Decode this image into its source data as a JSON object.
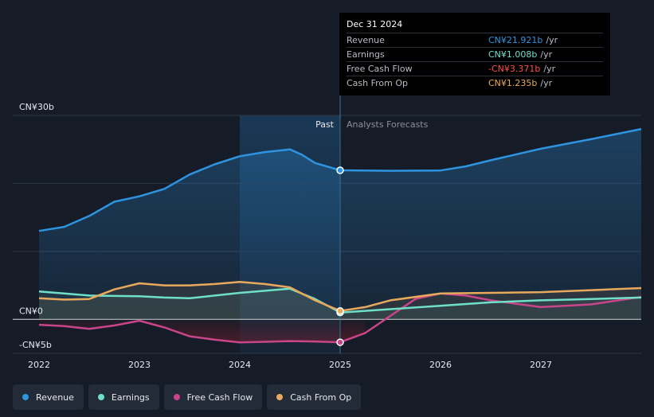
{
  "chart_data": {
    "type": "line",
    "x_ticks": [
      "2022",
      "2023",
      "2024",
      "2025",
      "2026",
      "2027"
    ],
    "xlim": [
      2021.75,
      2028.0
    ],
    "ylim": [
      -5,
      30
    ],
    "y_labels": [
      {
        "value": 30,
        "label": "CN¥30b"
      },
      {
        "value": 0,
        "label": "CN¥0"
      },
      {
        "value": -5,
        "label": "-CN¥5b"
      }
    ],
    "gridlines": [
      30,
      20,
      10,
      0,
      -5
    ],
    "past_label": "Past",
    "forecast_label": "Analysts Forecasts",
    "divider_x": 2025.0,
    "highlight_start": 2024.0,
    "series": [
      {
        "name": "Revenue",
        "color": "#2e94e0",
        "points": [
          [
            2022.0,
            13.0
          ],
          [
            2022.25,
            13.6
          ],
          [
            2022.5,
            15.2
          ],
          [
            2022.75,
            17.3
          ],
          [
            2023.0,
            18.1
          ],
          [
            2023.25,
            19.2
          ],
          [
            2023.5,
            21.3
          ],
          [
            2023.75,
            22.8
          ],
          [
            2024.0,
            24.0
          ],
          [
            2024.25,
            24.6
          ],
          [
            2024.5,
            25.0
          ],
          [
            2024.62,
            24.2
          ],
          [
            2024.75,
            23.0
          ],
          [
            2025.0,
            21.92
          ],
          [
            2025.5,
            21.85
          ],
          [
            2026.0,
            21.9
          ],
          [
            2026.25,
            22.5
          ],
          [
            2026.5,
            23.4
          ],
          [
            2027.0,
            25.1
          ],
          [
            2027.5,
            26.5
          ],
          [
            2028.0,
            28.0
          ]
        ]
      },
      {
        "name": "Earnings",
        "color": "#6fe0c8",
        "points": [
          [
            2022.0,
            4.1
          ],
          [
            2022.25,
            3.8
          ],
          [
            2022.5,
            3.5
          ],
          [
            2023.0,
            3.4
          ],
          [
            2023.25,
            3.2
          ],
          [
            2023.5,
            3.1
          ],
          [
            2023.75,
            3.5
          ],
          [
            2024.0,
            3.9
          ],
          [
            2024.25,
            4.2
          ],
          [
            2024.5,
            4.5
          ],
          [
            2024.75,
            3.0
          ],
          [
            2025.0,
            1.01
          ],
          [
            2025.5,
            1.5
          ],
          [
            2026.0,
            2.0
          ],
          [
            2026.5,
            2.5
          ],
          [
            2027.0,
            2.8
          ],
          [
            2027.5,
            3.0
          ],
          [
            2028.0,
            3.2
          ]
        ]
      },
      {
        "name": "Free Cash Flow",
        "color": "#c8458a",
        "points": [
          [
            2022.0,
            -0.8
          ],
          [
            2022.25,
            -1.0
          ],
          [
            2022.5,
            -1.4
          ],
          [
            2022.75,
            -0.9
          ],
          [
            2023.0,
            -0.2
          ],
          [
            2023.25,
            -1.2
          ],
          [
            2023.5,
            -2.5
          ],
          [
            2023.75,
            -3.0
          ],
          [
            2024.0,
            -3.4
          ],
          [
            2024.25,
            -3.3
          ],
          [
            2024.5,
            -3.2
          ],
          [
            2024.75,
            -3.25
          ],
          [
            2025.0,
            -3.37
          ],
          [
            2025.25,
            -2.0
          ],
          [
            2025.5,
            0.5
          ],
          [
            2025.75,
            3.0
          ],
          [
            2026.0,
            3.8
          ],
          [
            2026.25,
            3.5
          ],
          [
            2026.5,
            2.8
          ],
          [
            2027.0,
            1.8
          ],
          [
            2027.5,
            2.2
          ],
          [
            2028.0,
            3.3
          ]
        ]
      },
      {
        "name": "Cash From Op",
        "color": "#e8a95c",
        "points": [
          [
            2022.0,
            3.1
          ],
          [
            2022.25,
            2.9
          ],
          [
            2022.5,
            3.0
          ],
          [
            2022.75,
            4.4
          ],
          [
            2023.0,
            5.3
          ],
          [
            2023.25,
            5.0
          ],
          [
            2023.5,
            5.0
          ],
          [
            2023.75,
            5.2
          ],
          [
            2024.0,
            5.5
          ],
          [
            2024.25,
            5.2
          ],
          [
            2024.5,
            4.7
          ],
          [
            2024.75,
            2.8
          ],
          [
            2025.0,
            1.24
          ],
          [
            2025.25,
            1.8
          ],
          [
            2025.5,
            2.8
          ],
          [
            2026.0,
            3.8
          ],
          [
            2026.5,
            3.9
          ],
          [
            2027.0,
            4.0
          ],
          [
            2027.5,
            4.3
          ],
          [
            2028.0,
            4.6
          ]
        ]
      }
    ]
  },
  "tooltip": {
    "date": "Dec 31 2024",
    "rows": [
      {
        "label": "Revenue",
        "value": "CN¥21.921b",
        "unit": "/yr",
        "color": "#2e94e0"
      },
      {
        "label": "Earnings",
        "value": "CN¥1.008b",
        "unit": "/yr",
        "color": "#6fe0c8"
      },
      {
        "label": "Free Cash Flow",
        "value": "-CN¥3.371b",
        "unit": "/yr",
        "color": "#ff4d4d"
      },
      {
        "label": "Cash From Op",
        "value": "CN¥1.235b",
        "unit": "/yr",
        "color": "#e8a95c"
      }
    ]
  },
  "legend": [
    {
      "label": "Revenue",
      "color": "#2e94e0"
    },
    {
      "label": "Earnings",
      "color": "#6fe0c8"
    },
    {
      "label": "Free Cash Flow",
      "color": "#c8458a"
    },
    {
      "label": "Cash From Op",
      "color": "#e8a95c"
    }
  ]
}
